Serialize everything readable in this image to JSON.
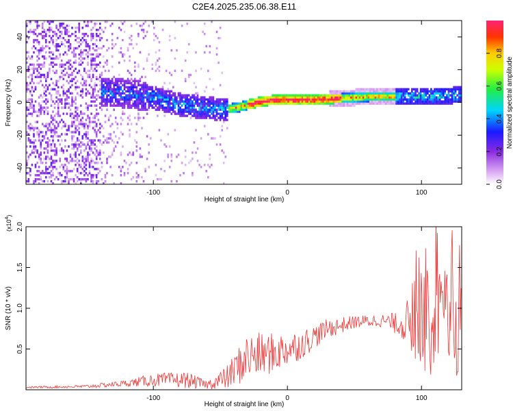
{
  "title": "C2E4.2025.235.06.38.E11",
  "chart_data": [
    {
      "type": "heatmap",
      "name": "spectrogram",
      "xlabel": "Height of straight line (km)",
      "ylabel": "Frequency (Hz)",
      "xlim": [
        -195,
        130
      ],
      "ylim": [
        -50,
        50
      ],
      "xticks": [
        -100,
        0,
        100
      ],
      "yticks": [
        -40,
        -20,
        0,
        20,
        40
      ],
      "ridge": [
        {
          "x": -140,
          "f": 6
        },
        {
          "x": -120,
          "f": 5
        },
        {
          "x": -100,
          "f": 2
        },
        {
          "x": -80,
          "f": -2
        },
        {
          "x": -60,
          "f": -4
        },
        {
          "x": -50,
          "f": -5
        },
        {
          "x": -40,
          "f": -4
        },
        {
          "x": -30,
          "f": -2
        },
        {
          "x": -20,
          "f": 0
        },
        {
          "x": -10,
          "f": 1
        },
        {
          "x": 0,
          "f": 1
        },
        {
          "x": 20,
          "f": 1
        },
        {
          "x": 40,
          "f": 2
        },
        {
          "x": 60,
          "f": 3
        },
        {
          "x": 80,
          "f": 3
        },
        {
          "x": 100,
          "f": 3
        },
        {
          "x": 130,
          "f": 4
        }
      ],
      "colorbar": {
        "label": "Normalized spectral amplitude",
        "range": [
          0,
          1
        ],
        "ticks": [
          0.0,
          0.2,
          0.4,
          0.6,
          0.8
        ]
      }
    },
    {
      "type": "line",
      "name": "snr",
      "xlabel": "Height of straight line (km)",
      "ylabel": "SNR (10 * v/v)",
      "scale_label": "(x10",
      "scale_exp": "4",
      "xlim": [
        -195,
        130
      ],
      "ylim": [
        0,
        2.0
      ],
      "xticks": [
        -100,
        0,
        100
      ],
      "yticks": [
        0.5,
        1.0,
        1.5,
        2.0
      ],
      "color": "#ee3333",
      "envelope": [
        {
          "x": -195,
          "base": 0.03,
          "amp": 0.01
        },
        {
          "x": -150,
          "base": 0.04,
          "amp": 0.02
        },
        {
          "x": -120,
          "base": 0.08,
          "amp": 0.04
        },
        {
          "x": -100,
          "base": 0.12,
          "amp": 0.08
        },
        {
          "x": -75,
          "base": 0.12,
          "amp": 0.1
        },
        {
          "x": -60,
          "base": 0.06,
          "amp": 0.05
        },
        {
          "x": -45,
          "base": 0.15,
          "amp": 0.15
        },
        {
          "x": -30,
          "base": 0.4,
          "amp": 0.3
        },
        {
          "x": -10,
          "base": 0.45,
          "amp": 0.25
        },
        {
          "x": 10,
          "base": 0.55,
          "amp": 0.18
        },
        {
          "x": 30,
          "base": 0.75,
          "amp": 0.12
        },
        {
          "x": 50,
          "base": 0.83,
          "amp": 0.08
        },
        {
          "x": 70,
          "base": 0.85,
          "amp": 0.08
        },
        {
          "x": 85,
          "base": 0.8,
          "amp": 0.15
        },
        {
          "x": 95,
          "base": 0.8,
          "amp": 0.5
        },
        {
          "x": 110,
          "base": 0.8,
          "amp": 0.7
        },
        {
          "x": 130,
          "base": 0.75,
          "amp": 0.6
        }
      ]
    }
  ]
}
